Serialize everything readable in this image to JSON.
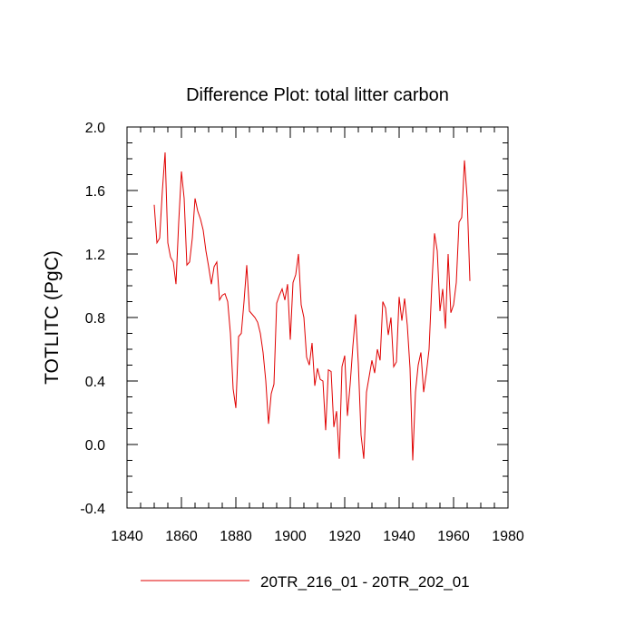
{
  "chart_data": {
    "type": "line",
    "title": "Difference Plot: total litter carbon",
    "xlabel": "",
    "ylabel": "TOTLITC  (PgC)",
    "xlim": [
      1840,
      1980
    ],
    "ylim": [
      -0.4,
      2.0
    ],
    "x_ticks": [
      1840,
      1860,
      1880,
      1900,
      1920,
      1940,
      1960,
      1980
    ],
    "x_tick_labels": [
      "1840",
      "1860",
      "1880",
      "1900",
      "1920",
      "1940",
      "1960",
      "1980"
    ],
    "y_ticks": [
      -0.4,
      0.0,
      0.4,
      0.8,
      1.2,
      1.6,
      2.0
    ],
    "y_tick_labels": [
      "-0.4",
      "0.0",
      "0.4",
      "0.8",
      "1.2",
      "1.6",
      "2.0"
    ],
    "grid": false,
    "legend_position": "bottom-center",
    "series": [
      {
        "name": "20TR_216_01 - 20TR_202_01",
        "color": "#e00000",
        "x": [
          1850,
          1851,
          1852,
          1853,
          1854,
          1855,
          1856,
          1857,
          1858,
          1859,
          1860,
          1861,
          1862,
          1863,
          1864,
          1865,
          1866,
          1867,
          1868,
          1869,
          1870,
          1871,
          1872,
          1873,
          1874,
          1875,
          1876,
          1877,
          1878,
          1879,
          1880,
          1881,
          1882,
          1883,
          1884,
          1885,
          1886,
          1887,
          1888,
          1889,
          1890,
          1891,
          1892,
          1893,
          1894,
          1895,
          1896,
          1897,
          1898,
          1899,
          1900,
          1901,
          1902,
          1903,
          1904,
          1905,
          1906,
          1907,
          1908,
          1909,
          1910,
          1911,
          1912,
          1913,
          1914,
          1915,
          1916,
          1917,
          1918,
          1919,
          1920,
          1921,
          1922,
          1923,
          1924,
          1925,
          1926,
          1927,
          1928,
          1929,
          1930,
          1931,
          1932,
          1933,
          1934,
          1935,
          1936,
          1937,
          1938,
          1939,
          1940,
          1941,
          1942,
          1943,
          1944,
          1945,
          1946,
          1947,
          1948,
          1949,
          1950,
          1951,
          1952,
          1953,
          1954,
          1955,
          1956,
          1957,
          1958,
          1959,
          1960,
          1961,
          1962,
          1963,
          1964,
          1965,
          1966
        ],
        "values": [
          1.51,
          1.27,
          1.3,
          1.6,
          1.84,
          1.27,
          1.18,
          1.15,
          1.01,
          1.4,
          1.72,
          1.55,
          1.13,
          1.15,
          1.3,
          1.55,
          1.47,
          1.42,
          1.35,
          1.22,
          1.12,
          1.01,
          1.12,
          1.15,
          0.91,
          0.94,
          0.95,
          0.9,
          0.7,
          0.35,
          0.23,
          0.68,
          0.7,
          0.9,
          1.13,
          0.84,
          0.82,
          0.8,
          0.77,
          0.7,
          0.58,
          0.4,
          0.13,
          0.32,
          0.38,
          0.89,
          0.94,
          0.98,
          0.91,
          1.01,
          0.66,
          1.02,
          1.07,
          1.2,
          0.88,
          0.8,
          0.55,
          0.5,
          0.64,
          0.37,
          0.48,
          0.41,
          0.4,
          0.09,
          0.47,
          0.46,
          0.11,
          0.21,
          -0.09,
          0.49,
          0.56,
          0.18,
          0.38,
          0.62,
          0.82,
          0.51,
          0.06,
          -0.09,
          0.33,
          0.43,
          0.53,
          0.45,
          0.6,
          0.53,
          0.9,
          0.86,
          0.69,
          0.8,
          0.49,
          0.52,
          0.93,
          0.78,
          0.92,
          0.75,
          0.48,
          -0.1,
          0.33,
          0.5,
          0.58,
          0.33,
          0.45,
          0.6,
          1.0,
          1.33,
          1.22,
          0.84,
          0.98,
          0.73,
          1.2,
          0.83,
          0.88,
          1.02,
          1.4,
          1.43,
          1.79,
          1.55,
          1.03
        ]
      }
    ]
  }
}
